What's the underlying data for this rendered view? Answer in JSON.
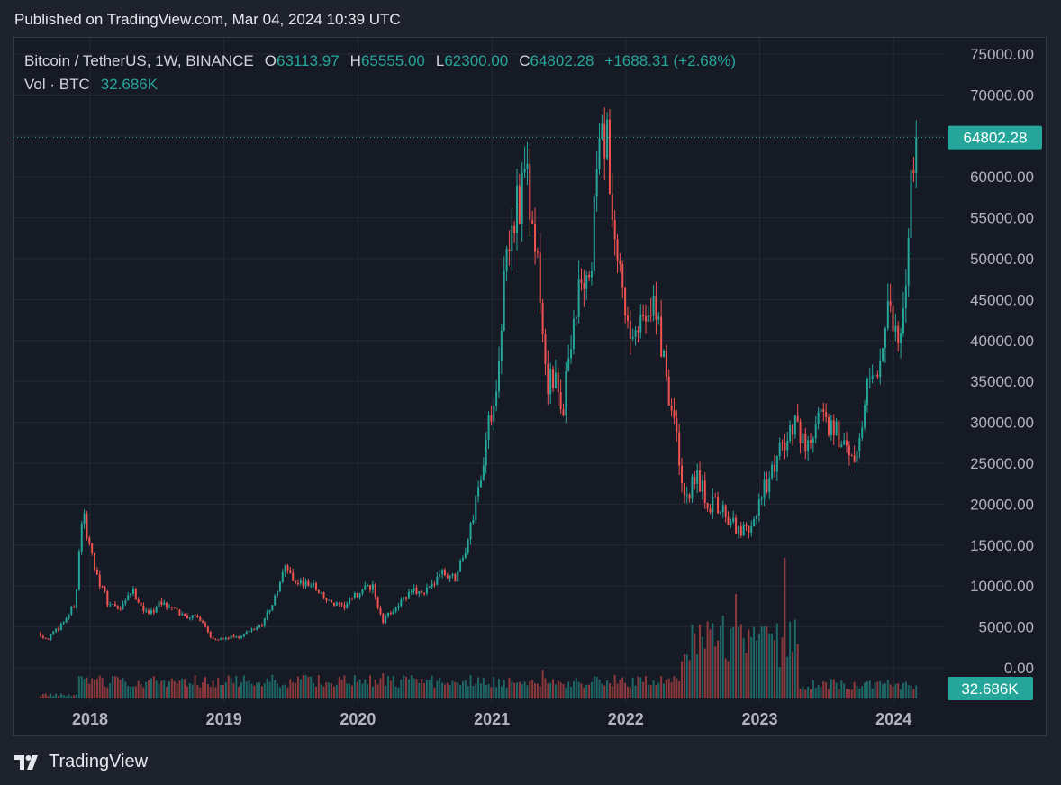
{
  "header": {
    "published": "Published on TradingView.com, Mar 04, 2024 10:39 UTC"
  },
  "legend": {
    "symbol": "Bitcoin / TetherUS, 1W, BINANCE",
    "open_label": "O",
    "open": "63113.97",
    "high_label": "H",
    "high": "65555.00",
    "low_label": "L",
    "low": "62300.00",
    "close_label": "C",
    "close": "64802.28",
    "change": "+1688.31 (+2.68%)",
    "vol_label": "Vol · BTC",
    "vol_value": "32.686K"
  },
  "footer": {
    "brand": "TradingView"
  },
  "colors": {
    "up": "#26a69a",
    "down": "#ef5350",
    "bg": "#161a25",
    "grid": "#232834"
  },
  "chart_data": {
    "type": "candlestick",
    "interval": "1W",
    "ylim": [
      0,
      75000
    ],
    "y_ticks": [
      "75000.00",
      "70000.00",
      "65000.00",
      "60000.00",
      "55000.00",
      "50000.00",
      "45000.00",
      "40000.00",
      "35000.00",
      "30000.00",
      "25000.00",
      "20000.00",
      "15000.00",
      "10000.00",
      "5000.00",
      "0.00"
    ],
    "x_ticks": [
      "2018",
      "2019",
      "2020",
      "2021",
      "2022",
      "2023",
      "2024"
    ],
    "last_price_label": "64802.28",
    "last_volume_label": "32.686K",
    "price_path": [
      [
        2017.63,
        4300
      ],
      [
        2017.7,
        3500
      ],
      [
        2017.78,
        4800
      ],
      [
        2017.86,
        6500
      ],
      [
        2017.91,
        8000
      ],
      [
        2017.96,
        19000
      ],
      [
        2018.03,
        14000
      ],
      [
        2018.08,
        11000
      ],
      [
        2018.15,
        8000
      ],
      [
        2018.25,
        7000
      ],
      [
        2018.33,
        9500
      ],
      [
        2018.45,
        6500
      ],
      [
        2018.55,
        8000
      ],
      [
        2018.7,
        6500
      ],
      [
        2018.85,
        6000
      ],
      [
        2018.92,
        3800
      ],
      [
        2019.0,
        3500
      ],
      [
        2019.15,
        3900
      ],
      [
        2019.3,
        5300
      ],
      [
        2019.4,
        8500
      ],
      [
        2019.48,
        12500
      ],
      [
        2019.55,
        10500
      ],
      [
        2019.7,
        10000
      ],
      [
        2019.8,
        8000
      ],
      [
        2019.9,
        7300
      ],
      [
        2020.05,
        9500
      ],
      [
        2020.13,
        10000
      ],
      [
        2020.2,
        5500
      ],
      [
        2020.3,
        7500
      ],
      [
        2020.45,
        9500
      ],
      [
        2020.55,
        9300
      ],
      [
        2020.62,
        11500
      ],
      [
        2020.75,
        11000
      ],
      [
        2020.85,
        16000
      ],
      [
        2020.95,
        25000
      ],
      [
        2021.05,
        35000
      ],
      [
        2021.12,
        48000
      ],
      [
        2021.2,
        57000
      ],
      [
        2021.28,
        59000
      ],
      [
        2021.37,
        47000
      ],
      [
        2021.42,
        36000
      ],
      [
        2021.5,
        34000
      ],
      [
        2021.55,
        32000
      ],
      [
        2021.62,
        42000
      ],
      [
        2021.7,
        48000
      ],
      [
        2021.75,
        45000
      ],
      [
        2021.8,
        61000
      ],
      [
        2021.87,
        66000
      ],
      [
        2021.93,
        50000
      ],
      [
        2022.0,
        47000
      ],
      [
        2022.05,
        38000
      ],
      [
        2022.12,
        42000
      ],
      [
        2022.22,
        46000
      ],
      [
        2022.3,
        38000
      ],
      [
        2022.38,
        30000
      ],
      [
        2022.45,
        21000
      ],
      [
        2022.55,
        23000
      ],
      [
        2022.65,
        20000
      ],
      [
        2022.75,
        19500
      ],
      [
        2022.85,
        16500
      ],
      [
        2022.95,
        16800
      ],
      [
        2023.05,
        22000
      ],
      [
        2023.12,
        24000
      ],
      [
        2023.2,
        28000
      ],
      [
        2023.28,
        29500
      ],
      [
        2023.38,
        27000
      ],
      [
        2023.48,
        30500
      ],
      [
        2023.58,
        29500
      ],
      [
        2023.68,
        26000
      ],
      [
        2023.75,
        27000
      ],
      [
        2023.82,
        34500
      ],
      [
        2023.9,
        37500
      ],
      [
        2023.97,
        42500
      ],
      [
        2024.05,
        42000
      ],
      [
        2024.1,
        43500
      ],
      [
        2024.13,
        51500
      ],
      [
        2024.17,
        64802
      ]
    ],
    "volume_peaks": [
      [
        2022.72,
        11500
      ],
      [
        2022.82,
        14500
      ],
      [
        2023.08,
        9000
      ],
      [
        2023.18,
        19500
      ],
      [
        2021.38,
        4000
      ],
      [
        2020.18,
        3500
      ]
    ]
  }
}
